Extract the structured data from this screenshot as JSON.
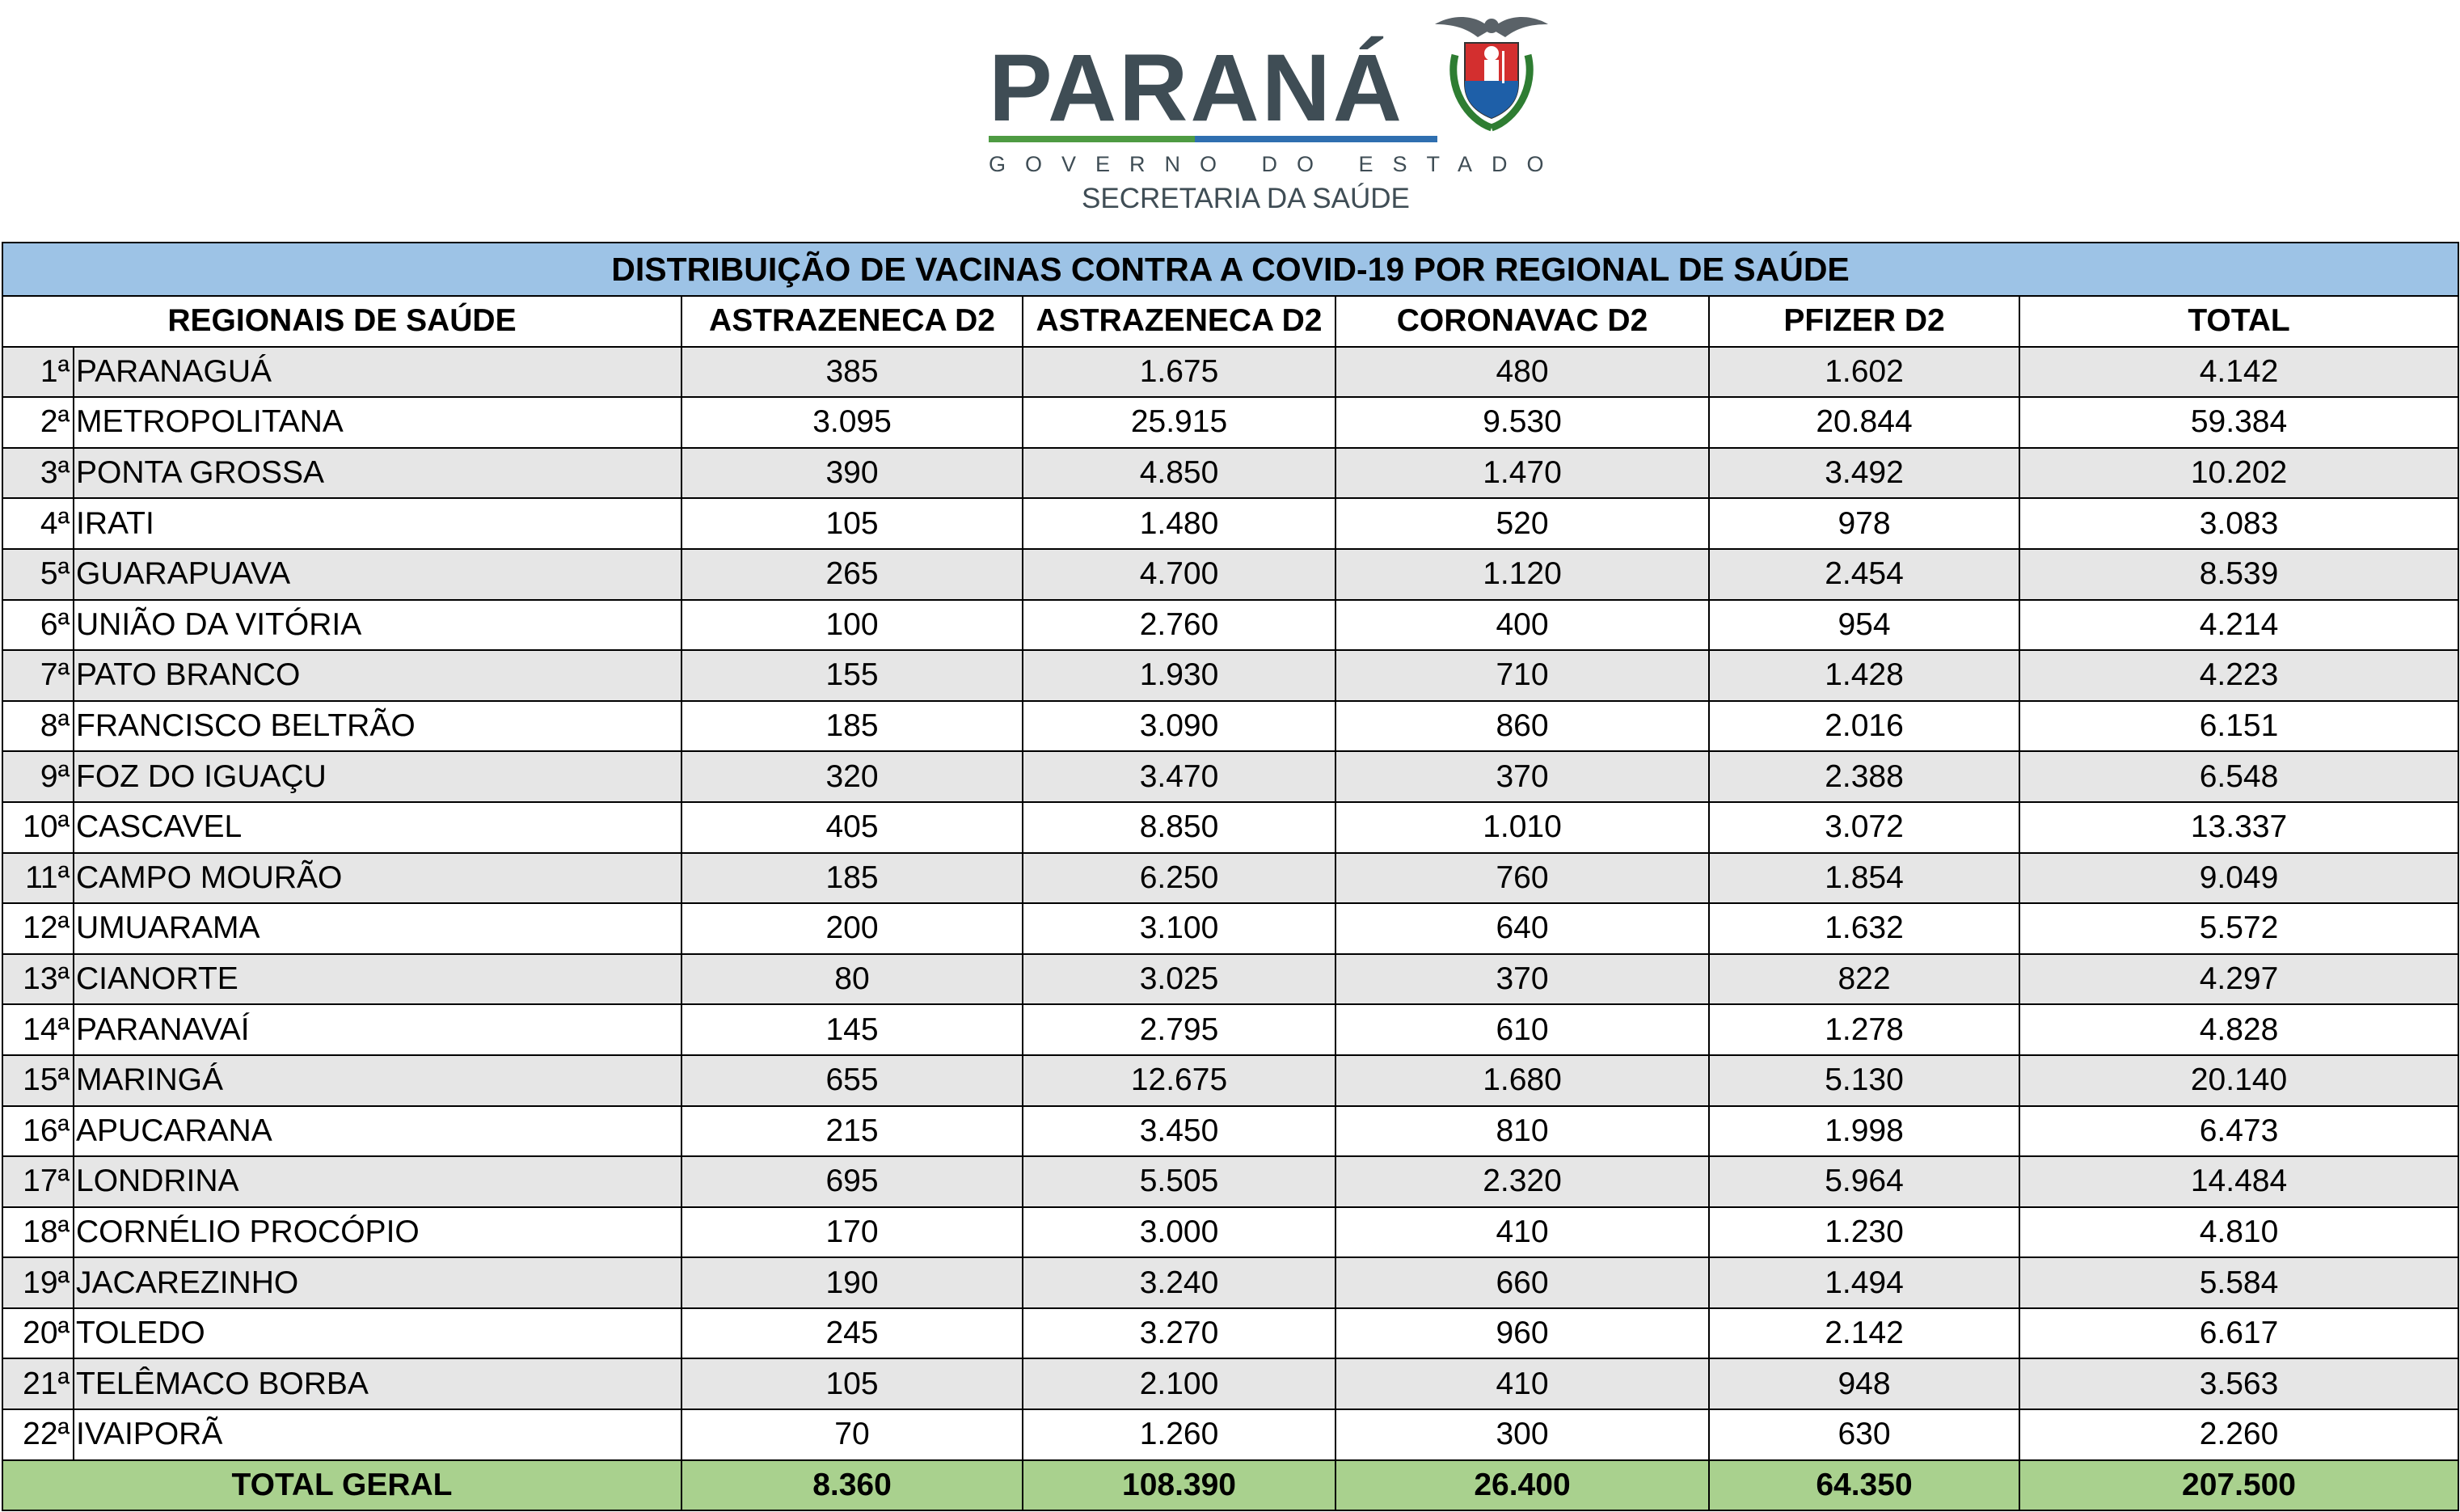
{
  "header": {
    "brand": "PARANÁ",
    "subtitle": "GOVERNO DO ESTADO",
    "department": "SECRETARIA DA SAÚDE",
    "logo_icon": "parana-coat-of-arms-icon",
    "colors": {
      "brand_text": "#3f4d55",
      "green": "#4e9b43",
      "blue": "#2f6fb0"
    }
  },
  "table": {
    "title": "DISTRIBUIÇÃO DE VACINAS CONTRA A COVID-19 POR REGIONAL DE SAÚDE",
    "columns": [
      "REGIONAIS DE SAÚDE",
      "ASTRAZENECA D2",
      "ASTRAZENECA D2",
      "CORONAVAC D2",
      "PFIZER D2",
      "TOTAL"
    ],
    "rows": [
      {
        "ord": "1ª",
        "name": "PARANAGUÁ",
        "v": [
          "385",
          "1.675",
          "480",
          "1.602",
          "4.142"
        ]
      },
      {
        "ord": "2ª",
        "name": "METROPOLITANA",
        "v": [
          "3.095",
          "25.915",
          "9.530",
          "20.844",
          "59.384"
        ]
      },
      {
        "ord": "3ª",
        "name": "PONTA GROSSA",
        "v": [
          "390",
          "4.850",
          "1.470",
          "3.492",
          "10.202"
        ]
      },
      {
        "ord": "4ª",
        "name": "IRATI",
        "v": [
          "105",
          "1.480",
          "520",
          "978",
          "3.083"
        ]
      },
      {
        "ord": "5ª",
        "name": "GUARAPUAVA",
        "v": [
          "265",
          "4.700",
          "1.120",
          "2.454",
          "8.539"
        ]
      },
      {
        "ord": "6ª",
        "name": "UNIÃO DA VITÓRIA",
        "v": [
          "100",
          "2.760",
          "400",
          "954",
          "4.214"
        ]
      },
      {
        "ord": "7ª",
        "name": "PATO BRANCO",
        "v": [
          "155",
          "1.930",
          "710",
          "1.428",
          "4.223"
        ]
      },
      {
        "ord": "8ª",
        "name": "FRANCISCO BELTRÃO",
        "v": [
          "185",
          "3.090",
          "860",
          "2.016",
          "6.151"
        ]
      },
      {
        "ord": "9ª",
        "name": "FOZ DO IGUAÇU",
        "v": [
          "320",
          "3.470",
          "370",
          "2.388",
          "6.548"
        ]
      },
      {
        "ord": "10ª",
        "name": "CASCAVEL",
        "v": [
          "405",
          "8.850",
          "1.010",
          "3.072",
          "13.337"
        ]
      },
      {
        "ord": "11ª",
        "name": "CAMPO MOURÃO",
        "v": [
          "185",
          "6.250",
          "760",
          "1.854",
          "9.049"
        ]
      },
      {
        "ord": "12ª",
        "name": "UMUARAMA",
        "v": [
          "200",
          "3.100",
          "640",
          "1.632",
          "5.572"
        ]
      },
      {
        "ord": "13ª",
        "name": "CIANORTE",
        "v": [
          "80",
          "3.025",
          "370",
          "822",
          "4.297"
        ]
      },
      {
        "ord": "14ª",
        "name": "PARANAVAÍ",
        "v": [
          "145",
          "2.795",
          "610",
          "1.278",
          "4.828"
        ]
      },
      {
        "ord": "15ª",
        "name": "MARINGÁ",
        "v": [
          "655",
          "12.675",
          "1.680",
          "5.130",
          "20.140"
        ]
      },
      {
        "ord": "16ª",
        "name": "APUCARANA",
        "v": [
          "215",
          "3.450",
          "810",
          "1.998",
          "6.473"
        ]
      },
      {
        "ord": "17ª",
        "name": "LONDRINA",
        "v": [
          "695",
          "5.505",
          "2.320",
          "5.964",
          "14.484"
        ]
      },
      {
        "ord": "18ª",
        "name": "CORNÉLIO PROCÓPIO",
        "v": [
          "170",
          "3.000",
          "410",
          "1.230",
          "4.810"
        ]
      },
      {
        "ord": "19ª",
        "name": "JACAREZINHO",
        "v": [
          "190",
          "3.240",
          "660",
          "1.494",
          "5.584"
        ]
      },
      {
        "ord": "20ª",
        "name": "TOLEDO",
        "v": [
          "245",
          "3.270",
          "960",
          "2.142",
          "6.617"
        ]
      },
      {
        "ord": "21ª",
        "name": "TELÊMACO BORBA",
        "v": [
          "105",
          "2.100",
          "410",
          "948",
          "3.563"
        ]
      },
      {
        "ord": "22ª",
        "name": "IVAIPORÃ",
        "v": [
          "70",
          "1.260",
          "300",
          "630",
          "2.260"
        ]
      }
    ],
    "total": {
      "label": "TOTAL GERAL",
      "v": [
        "8.360",
        "108.390",
        "26.400",
        "64.350",
        "207.500"
      ]
    },
    "colors": {
      "title_bg": "#9dc3e6",
      "zebra": "#e6e6e6",
      "total_bg": "#a9d18e"
    }
  }
}
